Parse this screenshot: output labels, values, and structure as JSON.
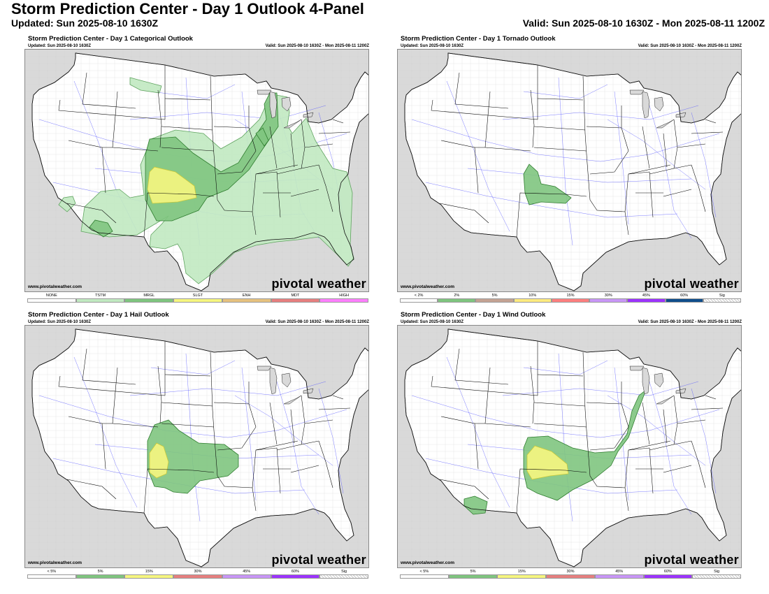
{
  "header": {
    "title": "Storm Prediction Center - Day 1 Outlook 4-Panel",
    "updated": "Updated: Sun 2025-08-10 1630Z",
    "valid": "Valid: Sun 2025-08-10 1630Z - Mon 2025-08-11 1200Z"
  },
  "colors": {
    "tstm": "#c1e9c1",
    "mrgl": "#7fc57f",
    "slgt": "#f6f67f",
    "enh": "#e6c27f",
    "mdt": "#e67f7f",
    "high": "#ff7fff",
    "prob2": "#7fc57f",
    "prob5": "#c5a393",
    "prob10": "#ffeb7f",
    "prob15": "#ff7f7f",
    "prob30": "#c896f7",
    "prob45": "#9c33ff",
    "prob60": "#104e8b",
    "land": "#ffffff",
    "water": "#d9d9d9"
  },
  "panels": [
    {
      "id": "categorical",
      "title": "Storm Prediction Center - Day 1 Categorical Outlook",
      "updated": "Updated: Sun 2025-08-10 1630Z",
      "valid": "Valid: Sun 2025-08-10 1630Z - Mon 2025-08-11 1200Z",
      "credit": "www.pivotalweather.com",
      "brand": "pivotal weather",
      "legend": [
        {
          "label": "NONE",
          "color": "#ffffff"
        },
        {
          "label": "TSTM",
          "color": "#c1e9c1"
        },
        {
          "label": "MRGL",
          "color": "#7fc57f"
        },
        {
          "label": "SLGT",
          "color": "#f6f67f"
        },
        {
          "label": "ENH",
          "color": "#e6c27f"
        },
        {
          "label": "MDT",
          "color": "#e67f7f"
        },
        {
          "label": "HIGH",
          "color": "#ff7fff"
        }
      ]
    },
    {
      "id": "tornado",
      "title": "Storm Prediction Center - Day 1 Tornado Outlook",
      "updated": "Updated: Sun 2025-08-10 1630Z",
      "valid": "Valid: Sun 2025-08-10 1630Z - Mon 2025-08-11 1200Z",
      "credit": "www.pivotalweather.com",
      "brand": "pivotal weather",
      "legend": [
        {
          "label": "< 2%",
          "color": "#ffffff"
        },
        {
          "label": "2%",
          "color": "#7fc57f"
        },
        {
          "label": "5%",
          "color": "#c5a393"
        },
        {
          "label": "10%",
          "color": "#ffeb7f"
        },
        {
          "label": "15%",
          "color": "#ff7f7f"
        },
        {
          "label": "30%",
          "color": "#c896f7"
        },
        {
          "label": "45%",
          "color": "#9c33ff"
        },
        {
          "label": "60%",
          "color": "#104e8b"
        },
        {
          "label": "Sig",
          "color": "hatch"
        }
      ]
    },
    {
      "id": "hail",
      "title": "Storm Prediction Center - Day 1 Hail Outlook",
      "updated": "Updated: Sun 2025-08-10 1630Z",
      "valid": "Valid: Sun 2025-08-10 1630Z - Mon 2025-08-11 1200Z",
      "credit": "www.pivotalweather.com",
      "brand": "pivotal weather",
      "legend": [
        {
          "label": "< 5%",
          "color": "#ffffff"
        },
        {
          "label": "5%",
          "color": "#7fc57f"
        },
        {
          "label": "15%",
          "color": "#f6f67f"
        },
        {
          "label": "30%",
          "color": "#e67f7f"
        },
        {
          "label": "45%",
          "color": "#c896f7"
        },
        {
          "label": "60%",
          "color": "#9c33ff"
        },
        {
          "label": "Sig",
          "color": "hatch"
        }
      ]
    },
    {
      "id": "wind",
      "title": "Storm Prediction Center - Day 1 Wind Outlook",
      "updated": "Updated: Sun 2025-08-10 1630Z",
      "valid": "Valid: Sun 2025-08-10 1630Z - Mon 2025-08-11 1200Z",
      "credit": "www.pivotalweather.com",
      "brand": "pivotal weather",
      "legend": [
        {
          "label": "< 5%",
          "color": "#ffffff"
        },
        {
          "label": "5%",
          "color": "#7fc57f"
        },
        {
          "label": "15%",
          "color": "#f6f67f"
        },
        {
          "label": "30%",
          "color": "#e67f7f"
        },
        {
          "label": "45%",
          "color": "#c896f7"
        },
        {
          "label": "60%",
          "color": "#9c33ff"
        },
        {
          "label": "Sig",
          "color": "hatch"
        }
      ]
    }
  ]
}
